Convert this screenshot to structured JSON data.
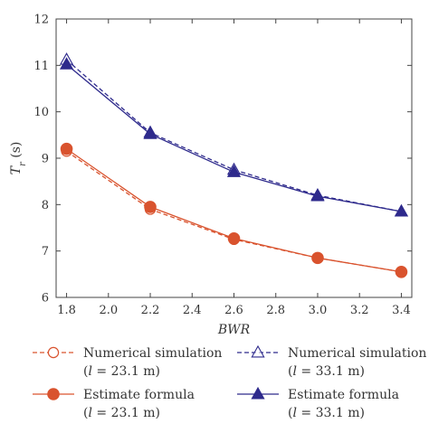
{
  "chart_data": {
    "type": "line",
    "xlabel": "BWR",
    "ylabel": "T_r (s)",
    "ylabel_parts": {
      "main": "T",
      "sub": "r",
      "unit": " (s)"
    },
    "xlim": [
      1.75,
      3.45
    ],
    "ylim": [
      6,
      12
    ],
    "xticks": [
      1.8,
      2.0,
      2.2,
      2.4,
      2.6,
      2.8,
      3.0,
      3.2,
      3.4
    ],
    "xtick_labels": [
      "1.8",
      "2.0",
      "2.2",
      "2.4",
      "2.6",
      "2.8",
      "3.0",
      "3.2",
      "3.4"
    ],
    "yticks": [
      6,
      7,
      8,
      9,
      10,
      11,
      12
    ],
    "ytick_labels": [
      "6",
      "7",
      "8",
      "9",
      "10",
      "11",
      "12"
    ],
    "grid": false,
    "legend_position": "bottom",
    "x": [
      1.8,
      2.2,
      2.6,
      3.0,
      3.4
    ],
    "series": [
      {
        "name": "Numerical simulation",
        "detail": "(l = 23.1 m)",
        "detail_parts": [
          "(",
          "l",
          " = 23.1 m)"
        ],
        "values": [
          9.15,
          7.9,
          7.25,
          6.85,
          6.55
        ],
        "color": "#d9532e",
        "marker": "circle-open",
        "dashed": true
      },
      {
        "name": "Estimate formula",
        "detail": "(l = 23.1 m)",
        "detail_parts": [
          "(",
          "l",
          " = 23.1 m)"
        ],
        "values": [
          9.2,
          7.95,
          7.27,
          6.85,
          6.55
        ],
        "color": "#d9532e",
        "marker": "circle-filled",
        "dashed": false
      },
      {
        "name": "Numerical simulation",
        "detail": "(l = 33.1 m)",
        "detail_parts": [
          "(",
          "l",
          " = 33.1 m)"
        ],
        "values": [
          11.12,
          9.55,
          8.75,
          8.2,
          7.85
        ],
        "color": "#2e2a8c",
        "marker": "triangle-open",
        "dashed": true
      },
      {
        "name": "Estimate formula",
        "detail": "(l = 33.1 m)",
        "detail_parts": [
          "(",
          "l",
          " = 33.1 m)"
        ],
        "values": [
          11.02,
          9.52,
          8.7,
          8.18,
          7.85
        ],
        "color": "#2e2a8c",
        "marker": "triangle-filled",
        "dashed": false
      }
    ]
  }
}
